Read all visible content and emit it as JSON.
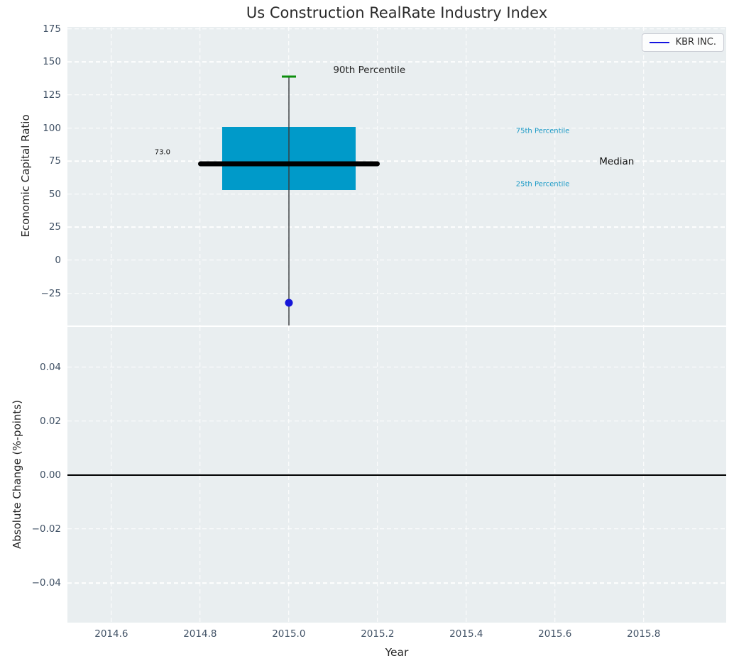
{
  "title": "Us Construction RealRate Industry Index",
  "legend": {
    "label": "KBR INC.",
    "line_color": "#1313e0"
  },
  "colors": {
    "axes_background": "#e9eef0",
    "grid": "#ffffff",
    "box_fill": "#009ac9",
    "percentile_label_text": "#1b9ac6",
    "whisker": "#3c3c3e",
    "cap_90th": "#0c8e0c",
    "kbr_point": "#1616d9",
    "median_line": "#000000",
    "zero_line": "#000000",
    "tick_label": "#405165",
    "text": "#262626"
  },
  "axes_top": {
    "ylabel": "Economic Capital Ratio",
    "xlim": [
      2014.501,
      2015.986
    ],
    "ylim": [
      -49.4,
      176.5
    ],
    "yticks": [
      {
        "value": 175,
        "label": "175"
      },
      {
        "value": 150,
        "label": "150"
      },
      {
        "value": 125,
        "label": "125"
      },
      {
        "value": 100,
        "label": "100"
      },
      {
        "value": 75,
        "label": "75"
      },
      {
        "value": 50,
        "label": "50"
      },
      {
        "value": 25,
        "label": "25"
      },
      {
        "value": 0,
        "label": "0"
      },
      {
        "value": -25,
        "label": "−25"
      }
    ],
    "xticks": [
      2014.6,
      2014.8,
      2015.0,
      2015.2,
      2015.4,
      2015.6,
      2015.8
    ]
  },
  "axes_bottom": {
    "ylabel": "Absolute Change (%-points)",
    "xlabel": "Year",
    "xlim": [
      2014.501,
      2015.986
    ],
    "ylim": [
      -0.0547,
      0.0549
    ],
    "yticks": [
      {
        "value": 0.04,
        "label": "0.04"
      },
      {
        "value": 0.02,
        "label": "0.02"
      },
      {
        "value": 0.0,
        "label": "0.00"
      },
      {
        "value": -0.02,
        "label": "−0.02"
      },
      {
        "value": -0.04,
        "label": "−0.04"
      }
    ],
    "xticks": [
      {
        "value": 2014.6,
        "label": "2014.6"
      },
      {
        "value": 2014.8,
        "label": "2014.8"
      },
      {
        "value": 2015.0,
        "label": "2015.0"
      },
      {
        "value": 2015.2,
        "label": "2015.2"
      },
      {
        "value": 2015.4,
        "label": "2015.4"
      },
      {
        "value": 2015.6,
        "label": "2015.6"
      },
      {
        "value": 2015.8,
        "label": "2015.8"
      }
    ],
    "zero_line_y": 0.0
  },
  "chart_data": [
    {
      "type": "boxplot",
      "subplot": "top",
      "title": "Us Construction RealRate Industry Index",
      "xlabel": "Year",
      "ylabel": "Economic Capital Ratio",
      "x_center": 2015.0,
      "box_halfwidth": 0.15,
      "median_line_halfwidth": 0.205,
      "cap_halfwidth": 0.016,
      "values": {
        "p90": 139,
        "p75": 101,
        "median": 73.0,
        "p25": 53
      },
      "whisker_low_clipped": true,
      "whisker_low_note": "lower whisker extends below visible axis (< -50)",
      "median_value_label": "73.0",
      "series": [
        {
          "name": "KBR INC.",
          "marker": "circle",
          "color": "#1616d9",
          "x": [
            2015.0
          ],
          "y": [
            -32
          ]
        }
      ],
      "annotations": [
        {
          "text": "90th Percentile",
          "x": 2015.1,
          "y": 143.8,
          "anchor": "left",
          "size": 13.5,
          "color": "#262626"
        },
        {
          "text": "75th Percentile",
          "x": 2015.512,
          "y": 97.6,
          "anchor": "left",
          "size": 10,
          "color": "#1b9ac6"
        },
        {
          "text": "Median",
          "x": 2015.7,
          "y": 74.5,
          "anchor": "left",
          "size": 13.5,
          "color": "#111111"
        },
        {
          "text": "25th Percentile",
          "x": 2015.512,
          "y": 57.4,
          "anchor": "left",
          "size": 10,
          "color": "#1b9ac6"
        },
        {
          "text": "73.0",
          "x": 2014.733,
          "y": 81.5,
          "anchor": "right",
          "size": 10,
          "color": "#111111"
        }
      ],
      "legend": [
        "KBR INC."
      ],
      "legend_position": "upper right",
      "grid": true,
      "xlim": [
        2014.501,
        2015.986
      ],
      "ylim": [
        -49.4,
        176.5
      ]
    },
    {
      "type": "line",
      "subplot": "bottom",
      "xlabel": "Year",
      "ylabel": "Absolute Change (%-points)",
      "series": [],
      "zero_line": 0.0,
      "grid": true,
      "xlim": [
        2014.501,
        2015.986
      ],
      "ylim": [
        -0.0547,
        0.0549
      ],
      "note": "no data series visible; only the y = 0 reference line"
    }
  ]
}
